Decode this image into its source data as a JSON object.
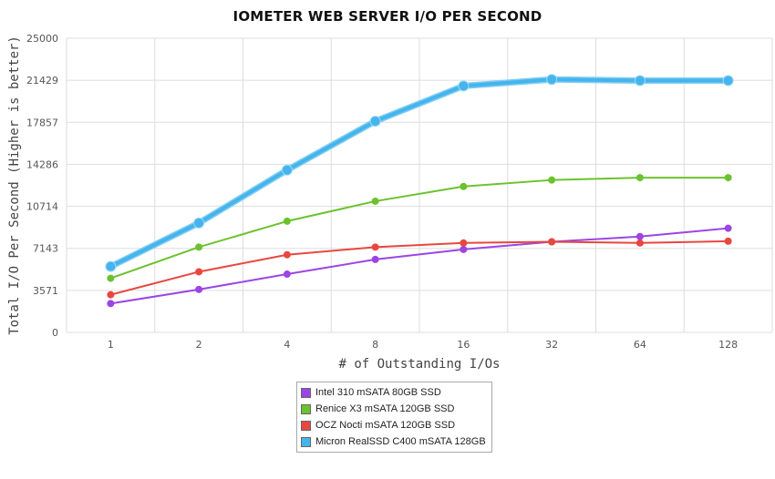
{
  "chart_data": {
    "type": "line",
    "title": "IOMETER WEB SERVER I/O PER SECOND",
    "xlabel": "# of Outstanding I/Os",
    "ylabel": "Total I/O Per Second (Higher is better)",
    "categories": [
      "1",
      "2",
      "4",
      "8",
      "16",
      "32",
      "64",
      "128"
    ],
    "yticks": [
      "0",
      "3571",
      "7143",
      "10714",
      "14286",
      "17857",
      "21429",
      "25000"
    ],
    "ylim": [
      0,
      25000
    ],
    "grid": true,
    "legend_position": "bottom",
    "series": [
      {
        "name": "Intel 310 mSATA 80GB SSD",
        "color": "#9b45e4",
        "values": [
          2450,
          3650,
          4950,
          6200,
          7050,
          7700,
          8150,
          8850
        ]
      },
      {
        "name": "Renice X3 mSATA 120GB SSD",
        "color": "#6cc22e",
        "values": [
          4600,
          7250,
          9450,
          11150,
          12400,
          12950,
          13150,
          13150
        ]
      },
      {
        "name": "OCZ Nocti mSATA 120GB SSD",
        "color": "#e8473f",
        "values": [
          3200,
          5150,
          6600,
          7250,
          7600,
          7700,
          7600,
          7750
        ]
      },
      {
        "name": "Micron RealSSD C400 mSATA 128GB",
        "color": "#45b4ec",
        "values": [
          5600,
          9300,
          13800,
          17950,
          20950,
          21500,
          21400,
          21400
        ]
      }
    ]
  }
}
